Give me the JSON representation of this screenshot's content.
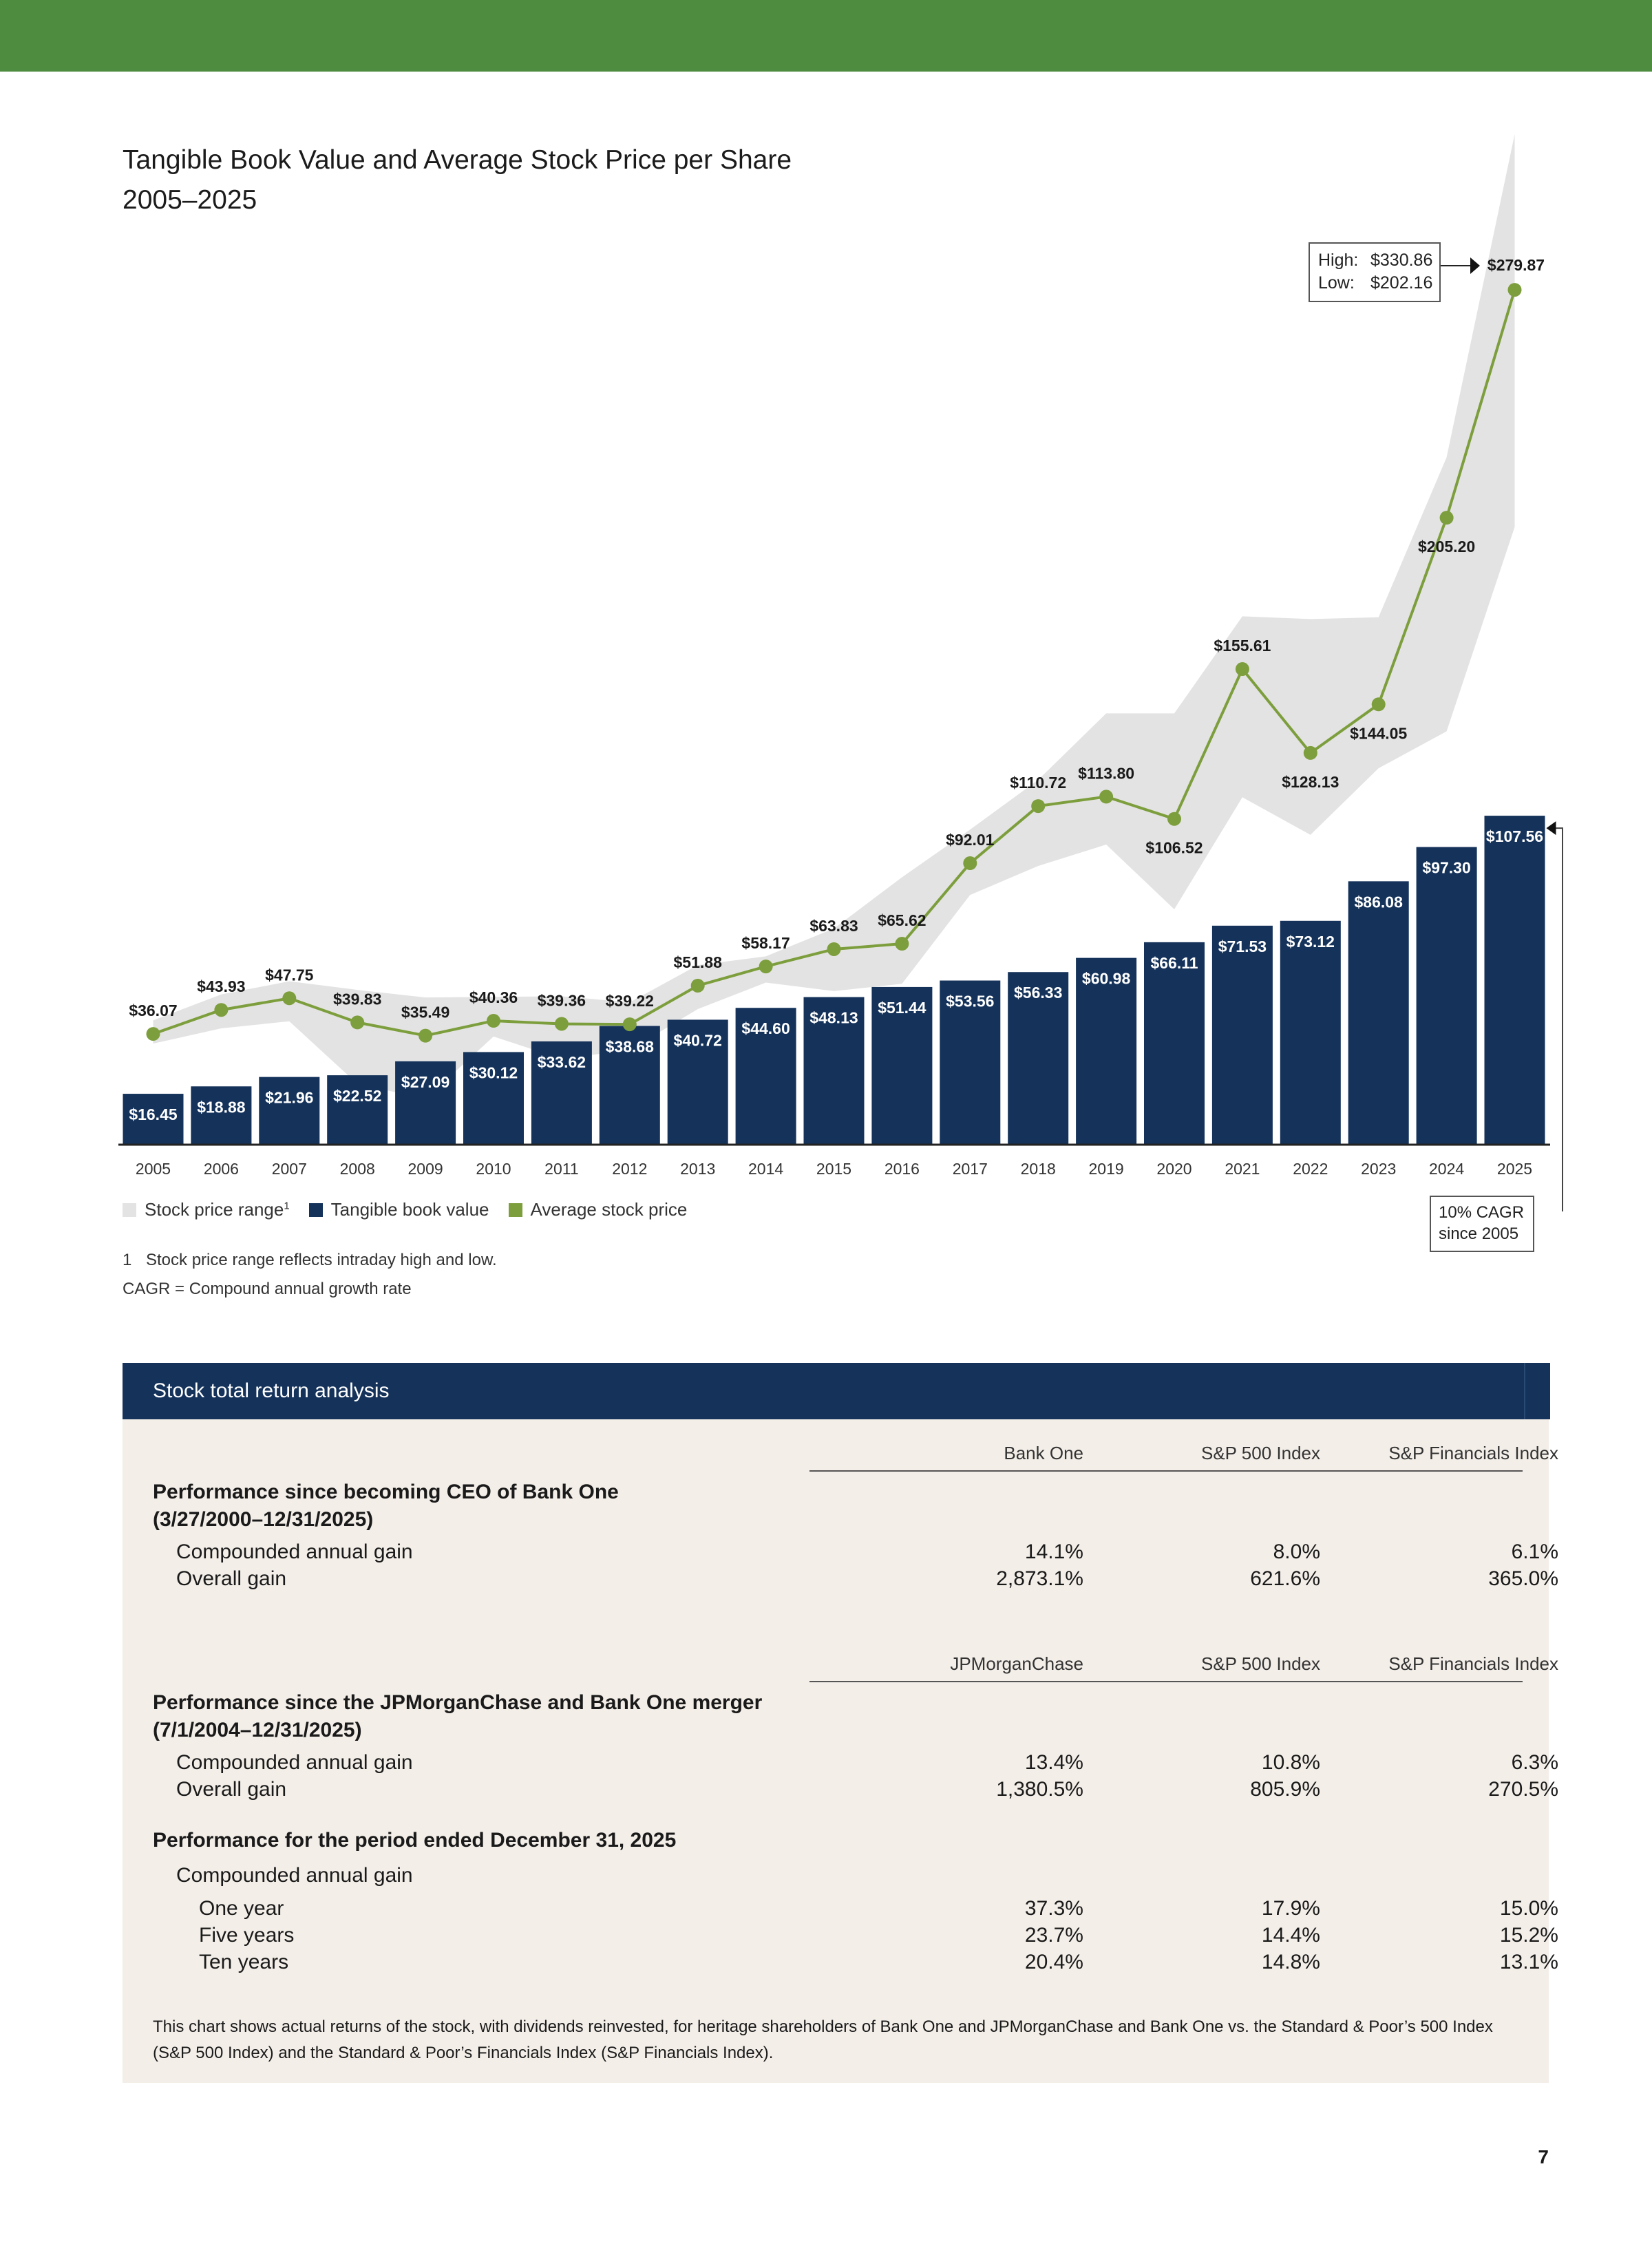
{
  "colors": {
    "green_bar": "#4e8c3f",
    "navy": "#14325a",
    "line_green": "#7d9e3c",
    "range_grey": "#e3e3e3",
    "panel_bg": "#f3eee8"
  },
  "title_line1": "Tangible Book Value and Average Stock Price per Share",
  "title_line2": "2005–2025",
  "chart_data": {
    "type": "bar",
    "categories": [
      "2005",
      "2006",
      "2007",
      "2008",
      "2009",
      "2010",
      "2011",
      "2012",
      "2013",
      "2014",
      "2015",
      "2016",
      "2017",
      "2018",
      "2019",
      "2020",
      "2021",
      "2022",
      "2023",
      "2024",
      "2025"
    ],
    "series": [
      {
        "name": "Tangible book value",
        "type": "bar",
        "values": [
          16.45,
          18.88,
          21.96,
          22.52,
          27.09,
          30.12,
          33.62,
          38.68,
          40.72,
          44.6,
          48.13,
          51.44,
          53.56,
          56.33,
          60.98,
          66.11,
          71.53,
          73.12,
          86.08,
          97.3,
          107.56
        ],
        "labels": [
          "$16.45",
          "$18.88",
          "$21.96",
          "$22.52",
          "$27.09",
          "$30.12",
          "$33.62",
          "$38.68",
          "$40.72",
          "$44.60",
          "$48.13",
          "$51.44",
          "$53.56",
          "$56.33",
          "$60.98",
          "$66.11",
          "$71.53",
          "$73.12",
          "$86.08",
          "$97.30",
          "$107.56"
        ]
      },
      {
        "name": "Average stock price",
        "type": "line",
        "values": [
          36.07,
          43.93,
          47.75,
          39.83,
          35.49,
          40.36,
          39.36,
          39.22,
          51.88,
          58.17,
          63.83,
          65.62,
          92.01,
          110.72,
          113.8,
          106.52,
          155.61,
          128.13,
          144.05,
          205.2,
          279.87
        ],
        "labels": [
          "$36.07",
          "$43.93",
          "$47.75",
          "$39.83",
          "$35.49",
          "$40.36",
          "$39.36",
          "$39.22",
          "$51.88",
          "$58.17",
          "$63.83",
          "$65.62",
          "$92.01",
          "$110.72",
          "$113.80",
          "$106.52",
          "$155.61",
          "$128.13",
          "$144.05",
          "$205.20",
          "$279.87"
        ]
      },
      {
        "name": "Stock price range",
        "type": "area",
        "high": [
          40.5,
          49.0,
          53.3,
          50.5,
          48.0,
          48.2,
          48.4,
          46.4,
          58.6,
          61.5,
          70.6,
          87.4,
          103.0,
          119.3,
          141.1,
          141.1,
          172.9,
          172.0,
          172.6,
          225.0,
          330.86
        ],
        "low": [
          32.9,
          37.9,
          40.2,
          19.7,
          14.8,
          35.2,
          27.9,
          30.8,
          44.2,
          52.9,
          50.1,
          52.5,
          81.6,
          91.1,
          98.1,
          76.9,
          113.6,
          101.3,
          123.1,
          135.2,
          202.16
        ]
      }
    ],
    "ylim": [
      0,
      330.86
    ],
    "grid": false,
    "legend_position": "bottom-left",
    "legend": [
      {
        "label": "Stock price range",
        "sup": "1"
      },
      {
        "label": "Tangible book value"
      },
      {
        "label": "Average stock price"
      }
    ],
    "annotations": {
      "high_label": "High:",
      "high_value": "$330.86",
      "low_label": "Low:",
      "low_value": "$202.16",
      "cagr_line1": "10% CAGR",
      "cagr_line2": "since 2005"
    }
  },
  "footnotes": {
    "note1_num": "1",
    "note1_text": "Stock price range reflects intraday high and low.",
    "cagr_def": "CAGR = Compound annual growth rate"
  },
  "table": {
    "title": "Stock total return analysis",
    "sec1": {
      "col1": "Bank One",
      "col2": "S&P 500 Index",
      "col3": "S&P Financials Index",
      "heading_line1": "Performance since becoming CEO of Bank One",
      "heading_line2": "(3/27/2000–12/31/2025)",
      "rows": [
        {
          "label": "Compounded annual gain",
          "v1": "14.1%",
          "v2": "8.0%",
          "v3": "6.1%"
        },
        {
          "label": "Overall gain",
          "v1": "2,873.1%",
          "v2": "621.6%",
          "v3": "365.0%"
        }
      ]
    },
    "sec2": {
      "col1": "JPMorganChase",
      "col2": "S&P 500 Index",
      "col3": "S&P Financials Index",
      "heading_line1": "Performance since the JPMorganChase and Bank One merger",
      "heading_line2": "(7/1/2004–12/31/2025)",
      "rows": [
        {
          "label": "Compounded annual gain",
          "v1": "13.4%",
          "v2": "10.8%",
          "v3": "6.3%"
        },
        {
          "label": "Overall gain",
          "v1": "1,380.5%",
          "v2": "805.9%",
          "v3": "270.5%"
        }
      ]
    },
    "sec3": {
      "heading": "Performance for the period ended December 31, 2025",
      "subheading": "Compounded annual gain",
      "rows": [
        {
          "label": "One year",
          "v1": "37.3%",
          "v2": "17.9%",
          "v3": "15.0%"
        },
        {
          "label": "Five years",
          "v1": "23.7%",
          "v2": "14.4%",
          "v3": "15.2%"
        },
        {
          "label": "Ten years",
          "v1": "20.4%",
          "v2": "14.8%",
          "v3": "13.1%"
        }
      ]
    },
    "note": "This chart shows actual returns of the stock, with dividends reinvested, for heritage shareholders of Bank One and JPMorganChase and Bank One vs. the Standard & Poor’s 500 Index (S&P 500 Index) and the Standard & Poor’s Financials Index (S&P Financials Index)."
  },
  "page_number": "7"
}
